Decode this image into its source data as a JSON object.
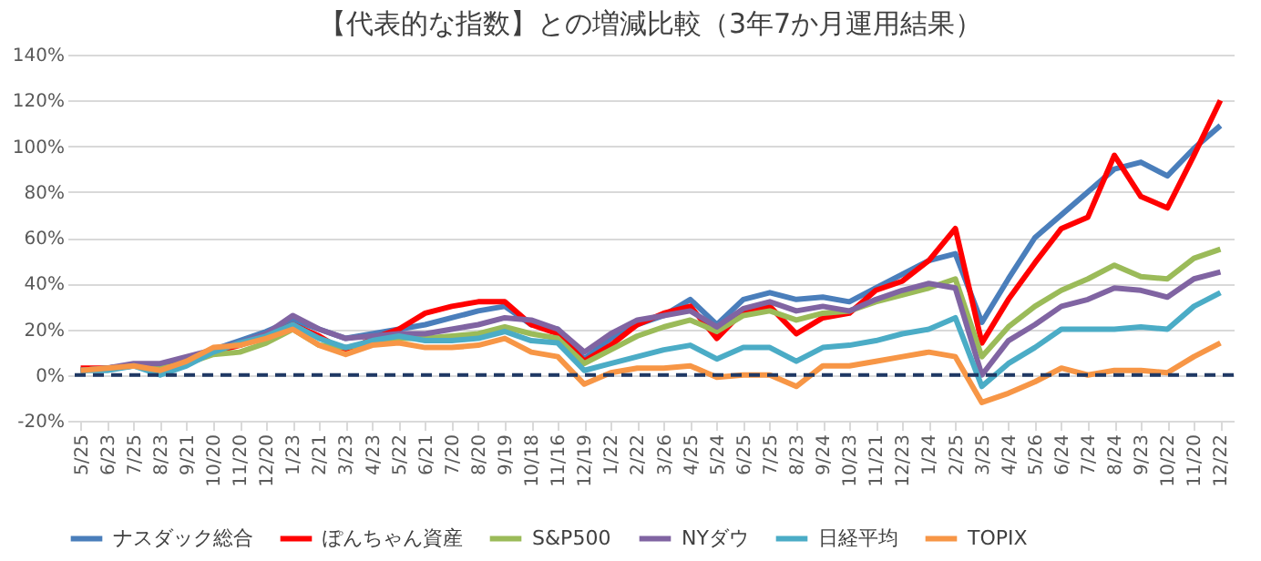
{
  "chart_data": {
    "type": "line",
    "title": "【代表的な指数】との増減比較（3年7か月運用結果）",
    "categories": [
      "5/25",
      "6/23",
      "7/25",
      "8/23",
      "9/21",
      "10/20",
      "11/20",
      "12/20",
      "1/23",
      "2/21",
      "3/23",
      "4/23",
      "5/22",
      "6/21",
      "7/20",
      "8/20",
      "9/19",
      "10/18",
      "11/16",
      "12/19",
      "1/22",
      "2/22",
      "3/26",
      "4/25",
      "5/24",
      "6/25",
      "7/25",
      "8/23",
      "9/24",
      "10/23",
      "11/21",
      "12/23",
      "1/24",
      "2/25",
      "3/25",
      "4/24",
      "5/26",
      "6/24",
      "7/24",
      "8/24",
      "9/23",
      "10/22",
      "11/20",
      "12/22"
    ],
    "series": [
      {
        "name": "ナスダック総合",
        "color": "#4a7ebb",
        "values": [
          2,
          3,
          4,
          3,
          7,
          11,
          15,
          19,
          24,
          20,
          16,
          18,
          20,
          22,
          25,
          28,
          30,
          22,
          20,
          7,
          16,
          22,
          26,
          33,
          22,
          33,
          36,
          33,
          34,
          32,
          38,
          44,
          50,
          53,
          23,
          42,
          60,
          70,
          80,
          90,
          93,
          87,
          99,
          109
        ]
      },
      {
        "name": "ぽんちゃん資産",
        "color": "#ff0000",
        "values": [
          3,
          3,
          4,
          3,
          5,
          10,
          13,
          17,
          22,
          17,
          10,
          16,
          20,
          27,
          30,
          32,
          32,
          22,
          18,
          6,
          13,
          22,
          27,
          30,
          16,
          28,
          30,
          18,
          25,
          27,
          37,
          41,
          50,
          64,
          14,
          33,
          49,
          64,
          69,
          96,
          78,
          73,
          96,
          120
        ]
      },
      {
        "name": "S&P500",
        "color": "#9bbb59",
        "values": [
          2,
          3,
          4,
          3,
          5,
          9,
          10,
          14,
          20,
          13,
          12,
          14,
          16,
          16,
          17,
          18,
          21,
          18,
          16,
          5,
          11,
          17,
          21,
          24,
          19,
          26,
          28,
          24,
          27,
          28,
          32,
          35,
          38,
          42,
          8,
          21,
          30,
          37,
          42,
          48,
          43,
          42,
          51,
          55
        ]
      },
      {
        "name": "NYダウ",
        "color": "#8064a2",
        "values": [
          2,
          3,
          5,
          5,
          8,
          11,
          14,
          18,
          26,
          20,
          16,
          17,
          18,
          18,
          20,
          22,
          25,
          24,
          20,
          10,
          18,
          24,
          26,
          28,
          21,
          29,
          32,
          28,
          30,
          28,
          33,
          37,
          40,
          38,
          0,
          15,
          22,
          30,
          33,
          38,
          37,
          34,
          42,
          45
        ]
      },
      {
        "name": "日経平均",
        "color": "#4bacc6",
        "values": [
          2,
          2,
          4,
          0,
          4,
          10,
          14,
          17,
          22,
          16,
          12,
          15,
          17,
          15,
          15,
          16,
          19,
          15,
          14,
          2,
          5,
          8,
          11,
          13,
          7,
          12,
          12,
          6,
          12,
          13,
          15,
          18,
          20,
          25,
          -5,
          5,
          12,
          20,
          20,
          20,
          21,
          20,
          30,
          36
        ]
      },
      {
        "name": "TOPIX",
        "color": "#f79646",
        "values": [
          2,
          3,
          4,
          2,
          6,
          12,
          13,
          16,
          20,
          13,
          9,
          13,
          14,
          12,
          12,
          13,
          16,
          10,
          8,
          -4,
          1,
          3,
          3,
          4,
          -1,
          0,
          0,
          -5,
          4,
          4,
          6,
          8,
          10,
          8,
          -12,
          -8,
          -3,
          3,
          0,
          2,
          2,
          1,
          8,
          14
        ]
      }
    ],
    "ylim": [
      -20,
      140
    ],
    "yticks": [
      {
        "value": -20,
        "label": "-20%"
      },
      {
        "value": 0,
        "label": "0%"
      },
      {
        "value": 20,
        "label": "20%"
      },
      {
        "value": 40,
        "label": "40%"
      },
      {
        "value": 60,
        "label": "60%"
      },
      {
        "value": 80,
        "label": "80%"
      },
      {
        "value": 100,
        "label": "100%"
      },
      {
        "value": 120,
        "label": "120%"
      },
      {
        "value": 140,
        "label": "140%"
      }
    ],
    "grid": "y",
    "legend": "bottom",
    "marker": "none",
    "line_style": "solid",
    "ref_lines": [
      {
        "axis": "y",
        "value": 0,
        "color": "#1f3864",
        "line_style": "dashed"
      }
    ]
  }
}
